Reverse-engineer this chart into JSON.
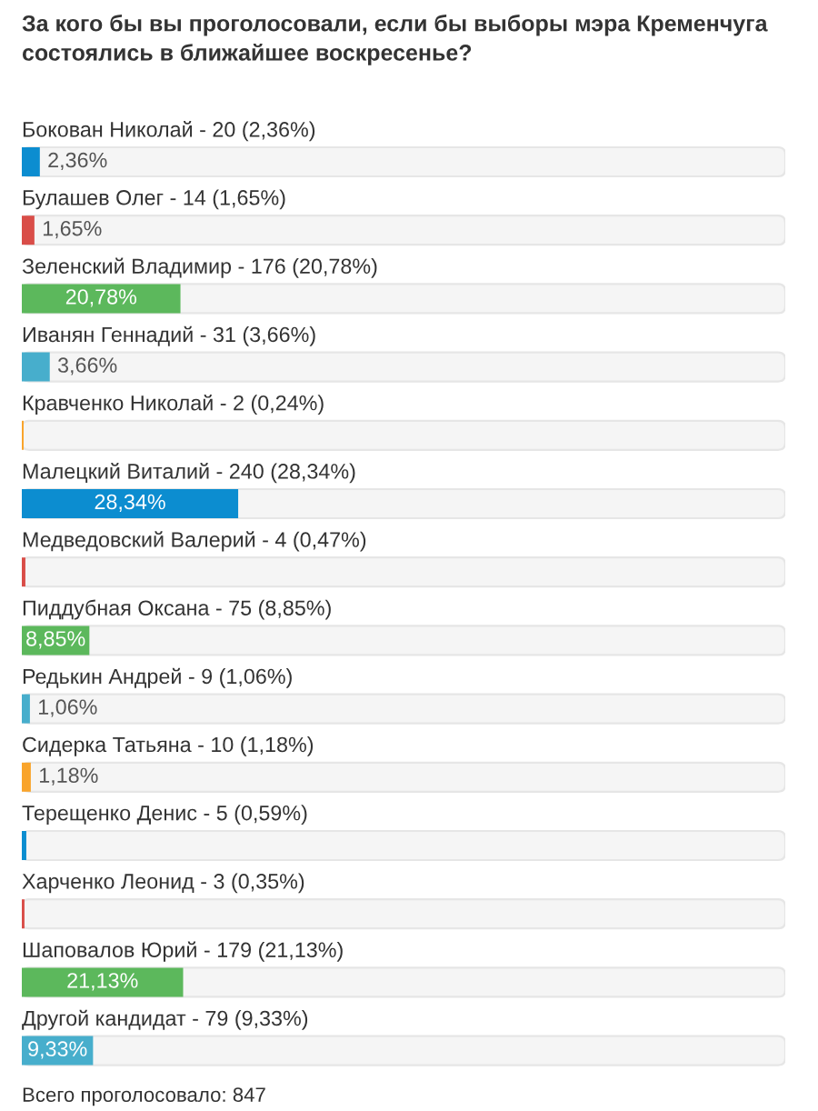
{
  "chart_data": {
    "type": "bar",
    "orientation": "horizontal",
    "title": "За кого бы вы проголосовали, если бы выборы мэра Кременчуга состоялись в ближайшее воскресенье?",
    "categories": [
      "Бокован Николай - 20 (2,36%)",
      "Булашев Олег - 14 (1,65%)",
      "Зеленский Владимир - 176 (20,78%)",
      "Иванян Геннадий - 31 (3,66%)",
      "Кравченко Николай - 2 (0,24%)",
      "Малецкий Виталий - 240 (28,34%)",
      "Медведовский Валерий - 4 (0,47%)",
      "Пиддубная Оксана - 75 (8,85%)",
      "Редькин Андрей - 9 (1,06%)",
      "Сидерка Татьяна - 10 (1,18%)",
      "Терещенко Денис - 5 (0,59%)",
      "Харченко Леонид - 3 (0,35%)",
      "Шаповалов Юрий - 179 (21,13%)",
      "Другой кандидат - 79 (9,33%)"
    ],
    "values": [
      2.36,
      1.65,
      20.78,
      3.66,
      0.24,
      28.34,
      0.47,
      8.85,
      1.06,
      1.18,
      0.59,
      0.35,
      21.13,
      9.33
    ],
    "colors": [
      "#0c8dd0",
      "#d94d48",
      "#5cb85c",
      "#47aecc",
      "#f9a42b",
      "#0c8dd0",
      "#d94d48",
      "#5cb85c",
      "#47aecc",
      "#f9a42b",
      "#0c8dd0",
      "#d94d48",
      "#5cb85c",
      "#47aecc"
    ],
    "value_labels": [
      "2,36%",
      "1,65%",
      "20,78%",
      "3,66%",
      null,
      "28,34%",
      null,
      "8,85%",
      "1,06%",
      "1,18%",
      null,
      null,
      "21,13%",
      "9,33%"
    ],
    "xlim": [
      0,
      100
    ],
    "tick_labels": false,
    "annotations": [
      "Всего проголосовало: 847"
    ]
  }
}
